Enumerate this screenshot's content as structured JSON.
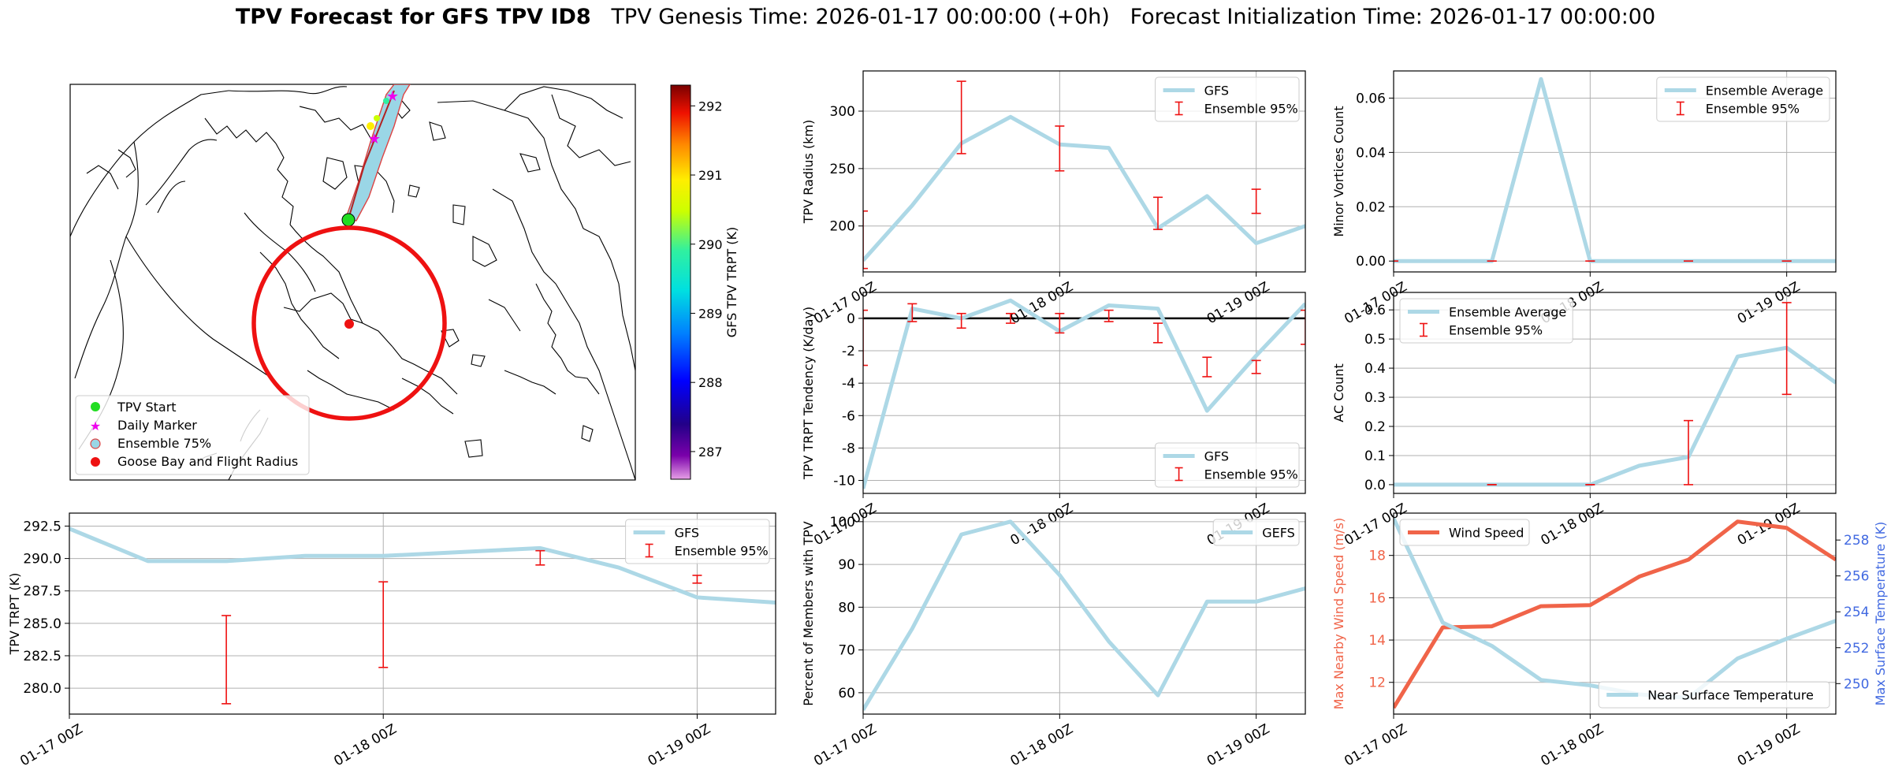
{
  "figure": {
    "title_main": "TPV Forecast for GFS TPV ID8",
    "title_genesis": "TPV Genesis Time: 2026-01-17 00:00:00 (+0h)",
    "title_init": "Forecast Initialization Time: 2026-01-17 00:00:00"
  },
  "map": {
    "colorbar_label": "GFS TPV TRPT (K)",
    "colorbar_ticks": [
      287,
      288,
      289,
      290,
      291,
      292
    ],
    "colorbar_range": [
      286.6,
      292.3
    ],
    "legend": [
      "TPV Start",
      "Daily Marker",
      "Ensemble 75%",
      "Goose Bay and Flight Radius"
    ],
    "colors": {
      "start": "#22dd22",
      "marker": "#ee00ee",
      "radius": "#ee1111",
      "track_outline": "#dd4444"
    }
  },
  "chart_data": [
    {
      "id": "trpt",
      "type": "line",
      "x": [
        0,
        6,
        12,
        18,
        24,
        30,
        36,
        42,
        48,
        54
      ],
      "xticks": [
        {
          "x": 0,
          "label": "01-17 00Z"
        },
        {
          "x": 24,
          "label": "01-18 00Z"
        },
        {
          "x": 48,
          "label": "01-19 00Z"
        }
      ],
      "xlim": [
        0,
        54
      ],
      "ylim": [
        278,
        293.5
      ],
      "yticks": [
        280.0,
        282.5,
        285.0,
        287.5,
        290.0,
        292.5
      ],
      "ylabel": "TPV TRPT (K)",
      "series": [
        {
          "name": "GFS",
          "values": [
            292.3,
            289.8,
            289.8,
            290.2,
            290.2,
            290.5,
            290.8,
            289.3,
            287.0,
            286.6
          ]
        }
      ],
      "errorbars": {
        "name": "Ensemble 95%",
        "points": [
          {
            "x": 12,
            "low": 278.8,
            "high": 285.6
          },
          {
            "x": 24,
            "low": 281.6,
            "high": 288.2
          },
          {
            "x": 36,
            "low": 289.5,
            "high": 290.6
          },
          {
            "x": 48,
            "low": 288.1,
            "high": 288.7
          }
        ]
      },
      "legend": "upper-right"
    },
    {
      "id": "radius",
      "type": "line",
      "x": [
        0,
        6,
        12,
        18,
        24,
        30,
        36,
        42,
        48,
        54
      ],
      "xticks": [
        {
          "x": 0,
          "label": "01-17 00Z"
        },
        {
          "x": 24,
          "label": "01-18 00Z"
        },
        {
          "x": 48,
          "label": "01-19 00Z"
        }
      ],
      "xlim": [
        0,
        54
      ],
      "ylim": [
        160,
        335
      ],
      "yticks": [
        200,
        250,
        300
      ],
      "ylabel": "TPV Radius (km)",
      "series": [
        {
          "name": "GFS",
          "values": [
            170,
            218,
            272,
            295,
            271,
            268,
            198,
            226,
            185,
            200
          ]
        }
      ],
      "errorbars": {
        "name": "Ensemble 95%",
        "points": [
          {
            "x": 0,
            "low": 163,
            "high": 213
          },
          {
            "x": 12,
            "low": 263,
            "high": 326
          },
          {
            "x": 24,
            "low": 248,
            "high": 287
          },
          {
            "x": 36,
            "low": 197,
            "high": 225
          },
          {
            "x": 48,
            "low": 211,
            "high": 232
          }
        ]
      },
      "legend": "upper-right"
    },
    {
      "id": "tendency",
      "type": "line",
      "x": [
        0,
        6,
        12,
        18,
        24,
        30,
        36,
        42,
        48,
        54
      ],
      "xticks": [
        {
          "x": 0,
          "label": "01-17 00Z"
        },
        {
          "x": 24,
          "label": "01-18 00Z"
        },
        {
          "x": 48,
          "label": "01-19 00Z"
        }
      ],
      "xlim": [
        0,
        54
      ],
      "ylim": [
        -10.8,
        1.6
      ],
      "yticks": [
        0,
        -2,
        -4,
        -6,
        -8,
        -10
      ],
      "ylabel": "TPV TRPT Tendency (K/day)",
      "zero_line": true,
      "series": [
        {
          "name": "GFS",
          "values": [
            -10.5,
            0.6,
            0.0,
            1.1,
            -0.8,
            0.8,
            0.6,
            -5.7,
            -2.3,
            0.9
          ]
        }
      ],
      "errorbars": {
        "name": "Ensemble 95%",
        "points": [
          {
            "x": 0,
            "low": -2.9,
            "high": 0.5
          },
          {
            "x": 6,
            "low": -0.2,
            "high": 0.9
          },
          {
            "x": 12,
            "low": -0.6,
            "high": 0.3
          },
          {
            "x": 18,
            "low": -0.3,
            "high": 0.3
          },
          {
            "x": 24,
            "low": -0.9,
            "high": 0.3
          },
          {
            "x": 30,
            "low": -0.2,
            "high": 0.5
          },
          {
            "x": 36,
            "low": -1.5,
            "high": -0.3
          },
          {
            "x": 42,
            "low": -3.6,
            "high": -2.4
          },
          {
            "x": 48,
            "low": -3.4,
            "high": -2.6
          },
          {
            "x": 54,
            "low": -1.6,
            "high": 0.5
          }
        ]
      },
      "legend": "lower-right"
    },
    {
      "id": "percent",
      "type": "line",
      "x": [
        0,
        6,
        12,
        18,
        24,
        30,
        36,
        42,
        48,
        54
      ],
      "xticks": [
        {
          "x": 0,
          "label": "01-17 00Z"
        },
        {
          "x": 24,
          "label": "01-18 00Z"
        },
        {
          "x": 48,
          "label": "01-19 00Z"
        }
      ],
      "xlim": [
        0,
        54
      ],
      "ylim": [
        55,
        102
      ],
      "yticks": [
        60,
        70,
        80,
        90,
        100
      ],
      "ylabel": "Percent of Members with TPV",
      "series": [
        {
          "name": "GEFS",
          "values": [
            56,
            75,
            97,
            100,
            87.5,
            72,
            59.4,
            81.3,
            81.3,
            84.4
          ]
        }
      ],
      "legend": "upper-right"
    },
    {
      "id": "minor",
      "type": "line",
      "x": [
        0,
        6,
        12,
        18,
        24,
        30,
        36,
        42,
        48,
        54
      ],
      "xticks": [
        {
          "x": 0,
          "label": "01-17 00Z"
        },
        {
          "x": 24,
          "label": "01-18 00Z"
        },
        {
          "x": 48,
          "label": "01-19 00Z"
        }
      ],
      "xlim": [
        0,
        54
      ],
      "ylim": [
        -0.004,
        0.07
      ],
      "yticks": [
        0.0,
        0.02,
        0.04,
        0.06
      ],
      "ylabel": "Minor Vortices Count",
      "series": [
        {
          "name": "Ensemble Average",
          "values": [
            0,
            0,
            0,
            0.067,
            0,
            0,
            0,
            0,
            0,
            0
          ]
        }
      ],
      "errorbars": {
        "name": "Ensemble 95%",
        "points": [
          {
            "x": 0,
            "low": 0,
            "high": 0
          },
          {
            "x": 12,
            "low": 0,
            "high": 0
          },
          {
            "x": 24,
            "low": 0,
            "high": 0
          },
          {
            "x": 36,
            "low": 0,
            "high": 0
          },
          {
            "x": 48,
            "low": 0,
            "high": 0
          }
        ]
      },
      "legend": "upper-right"
    },
    {
      "id": "ac",
      "type": "line",
      "x": [
        0,
        6,
        12,
        18,
        24,
        30,
        36,
        42,
        48,
        54
      ],
      "xticks": [
        {
          "x": 0,
          "label": "01-17 00Z"
        },
        {
          "x": 24,
          "label": "01-18 00Z"
        },
        {
          "x": 48,
          "label": "01-19 00Z"
        }
      ],
      "xlim": [
        0,
        54
      ],
      "ylim": [
        -0.03,
        0.66
      ],
      "yticks": [
        0.0,
        0.1,
        0.2,
        0.3,
        0.4,
        0.5,
        0.6
      ],
      "ylabel": "AC Count",
      "series": [
        {
          "name": "Ensemble Average",
          "values": [
            0,
            0,
            0,
            0,
            0,
            0.065,
            0.095,
            0.44,
            0.47,
            0.35
          ]
        }
      ],
      "errorbars": {
        "name": "Ensemble 95%",
        "points": [
          {
            "x": 12,
            "low": 0,
            "high": 0
          },
          {
            "x": 24,
            "low": 0,
            "high": 0
          },
          {
            "x": 36,
            "low": 0,
            "high": 0.22
          },
          {
            "x": 48,
            "low": 0.31,
            "high": 0.625
          }
        ]
      },
      "legend": "upper-left"
    },
    {
      "id": "wind",
      "type": "line",
      "x": [
        0,
        6,
        12,
        18,
        24,
        30,
        36,
        42,
        48,
        54
      ],
      "xticks": [
        {
          "x": 0,
          "label": "01-17 00Z"
        },
        {
          "x": 24,
          "label": "01-18 00Z"
        },
        {
          "x": 48,
          "label": "01-19 00Z"
        }
      ],
      "xlim": [
        0,
        54
      ],
      "ylim": [
        10.5,
        20
      ],
      "yticks": [
        12,
        14,
        16,
        18
      ],
      "ylabel": "Max Nearby Wind Speed (m/s)",
      "ylim2": [
        248.3,
        259.5
      ],
      "yticks2": [
        250,
        252,
        254,
        256,
        258
      ],
      "ylabel2": "Max Surface Temperature (K)",
      "series": [
        {
          "name": "Wind Speed",
          "axis": "left",
          "color": "#f06449",
          "values": [
            10.8,
            14.6,
            14.65,
            15.6,
            15.65,
            17.0,
            17.8,
            19.6,
            19.3,
            17.8
          ]
        },
        {
          "name": "Near Surface Temperature",
          "axis": "right",
          "color": "#add8e6",
          "values": [
            259.2,
            253.4,
            252.1,
            250.2,
            249.9,
            249.4,
            249.2,
            251.4,
            252.5,
            253.5
          ]
        }
      ],
      "axis_colors": {
        "left": "#f06449",
        "right": "#4169e1"
      }
    }
  ]
}
